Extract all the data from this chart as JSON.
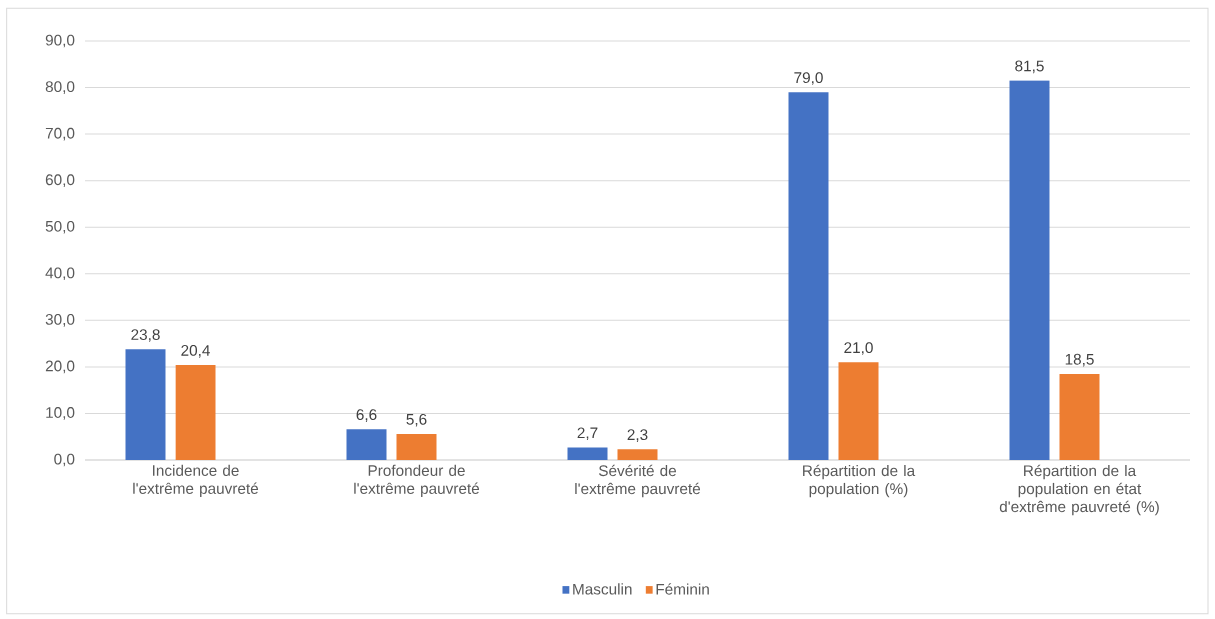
{
  "chart_data": {
    "type": "bar",
    "categories": [
      "Incidence de l'extrême pauvreté",
      "Profondeur de l'extrême pauvreté",
      "Sévérité de l'extrême pauvreté",
      "Répartition de la population (%)",
      "Répartition de la population en état d'extrême pauvreté (%)"
    ],
    "series": [
      {
        "name": "Masculin",
        "color": "#4472c4",
        "values": [
          23.8,
          6.6,
          2.7,
          79.0,
          81.5
        ],
        "value_labels": [
          "23,8",
          "6,6",
          "2,7",
          "79,0",
          "81,5"
        ]
      },
      {
        "name": "Féminin",
        "color": "#ed7d31",
        "values": [
          20.4,
          5.6,
          2.3,
          21.0,
          18.5
        ],
        "value_labels": [
          "20,4",
          "5,6",
          "2,3",
          "21,0",
          "18,5"
        ]
      }
    ],
    "ylim": [
      0,
      90
    ],
    "yticks": [
      {
        "value": 0,
        "label": "0,0"
      },
      {
        "value": 10,
        "label": "10,0"
      },
      {
        "value": 20,
        "label": "20,0"
      },
      {
        "value": 30,
        "label": "30,0"
      },
      {
        "value": 40,
        "label": "40,0"
      },
      {
        "value": 50,
        "label": "50,0"
      },
      {
        "value": 60,
        "label": "60,0"
      },
      {
        "value": 70,
        "label": "70,0"
      },
      {
        "value": 80,
        "label": "80,0"
      },
      {
        "value": 90,
        "label": "90,0"
      }
    ],
    "grid": "y",
    "legend": "bottom"
  }
}
